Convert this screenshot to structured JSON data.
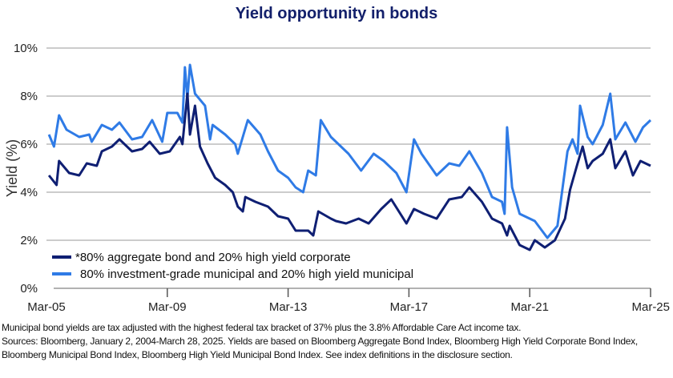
{
  "title": "Yield opportunity in bonds",
  "footnote": {
    "line1": "Municipal bond yields are tax adjusted with the highest federal tax bracket of 37% plus the 3.8% Affordable Care Act income tax.",
    "line2": "Sources: Bloomberg, January 2, 2004-March 28, 2025. Yields are based on Bloomberg Aggregate Bond Index, Bloomberg High Yield Corporate Bond Index, Bloomberg Municipal Bond Index, Bloomberg High Yield Municipal Bond Index. See index definitions in the disclosure section."
  },
  "chart_data": {
    "type": "line",
    "title": "Yield opportunity in bonds",
    "xlabel": "",
    "ylabel": "Yield (%)",
    "ylim": [
      0,
      10
    ],
    "yticks": [
      "0%",
      "2%",
      "4%",
      "6%",
      "8%",
      "10%"
    ],
    "xticks": [
      "Mar-05",
      "Mar-09",
      "Mar-13",
      "Mar-17",
      "Mar-21",
      "Mar-25"
    ],
    "xlim": [
      "2005-03",
      "2025-03"
    ],
    "grid": "horizontal",
    "legend_position": "bottom-left",
    "series": [
      {
        "name": "*80% aggregate bond and 20% high yield corporate",
        "color": "#0f1f73",
        "points": [
          [
            "2005-04",
            4.7
          ],
          [
            "2005-07",
            4.3
          ],
          [
            "2005-08",
            5.3
          ],
          [
            "2005-12",
            4.8
          ],
          [
            "2006-04",
            4.7
          ],
          [
            "2006-07",
            5.2
          ],
          [
            "2006-11",
            5.1
          ],
          [
            "2007-01",
            5.7
          ],
          [
            "2007-05",
            5.9
          ],
          [
            "2007-08",
            6.2
          ],
          [
            "2008-01",
            5.7
          ],
          [
            "2008-05",
            5.8
          ],
          [
            "2008-08",
            6.1
          ],
          [
            "2008-12",
            5.6
          ],
          [
            "2009-04",
            5.7
          ],
          [
            "2009-08",
            6.3
          ],
          [
            "2009-09",
            6.0
          ],
          [
            "2009-11",
            8.1
          ],
          [
            "2009-12",
            6.4
          ],
          [
            "2010-02",
            7.6
          ],
          [
            "2010-04",
            5.9
          ],
          [
            "2010-07",
            5.2
          ],
          [
            "2010-10",
            4.6
          ],
          [
            "2011-02",
            4.3
          ],
          [
            "2011-05",
            4.0
          ],
          [
            "2011-07",
            3.4
          ],
          [
            "2011-09",
            3.2
          ],
          [
            "2011-10",
            3.8
          ],
          [
            "2012-02",
            3.6
          ],
          [
            "2012-07",
            3.4
          ],
          [
            "2012-11",
            3.0
          ],
          [
            "2013-03",
            2.9
          ],
          [
            "2013-06",
            2.4
          ],
          [
            "2013-11",
            2.4
          ],
          [
            "2014-01",
            2.2
          ],
          [
            "2014-03",
            3.2
          ],
          [
            "2014-08",
            2.9
          ],
          [
            "2014-10",
            2.8
          ],
          [
            "2015-02",
            2.7
          ],
          [
            "2015-07",
            2.9
          ],
          [
            "2015-11",
            2.7
          ],
          [
            "2016-04",
            3.3
          ],
          [
            "2016-08",
            3.7
          ],
          [
            "2017-02",
            2.7
          ],
          [
            "2017-05",
            3.3
          ],
          [
            "2017-09",
            3.1
          ],
          [
            "2018-02",
            2.9
          ],
          [
            "2018-07",
            3.7
          ],
          [
            "2018-12",
            3.8
          ],
          [
            "2019-03",
            4.2
          ],
          [
            "2019-08",
            3.6
          ],
          [
            "2019-12",
            2.9
          ],
          [
            "2020-04",
            2.7
          ],
          [
            "2020-06",
            2.2
          ],
          [
            "2020-07",
            2.6
          ],
          [
            "2020-11",
            1.8
          ],
          [
            "2021-03",
            1.6
          ],
          [
            "2021-05",
            2.0
          ],
          [
            "2021-09",
            1.7
          ],
          [
            "2022-01",
            2.0
          ],
          [
            "2022-05",
            2.9
          ],
          [
            "2022-07",
            4.1
          ],
          [
            "2022-10",
            5.2
          ],
          [
            "2022-12",
            5.9
          ],
          [
            "2023-02",
            5.0
          ],
          [
            "2023-04",
            5.3
          ],
          [
            "2023-08",
            5.6
          ],
          [
            "2023-11",
            6.2
          ],
          [
            "2024-01",
            5.0
          ],
          [
            "2024-05",
            5.7
          ],
          [
            "2024-08",
            4.7
          ],
          [
            "2024-11",
            5.3
          ],
          [
            "2025-03",
            5.1
          ]
        ]
      },
      {
        "name": "80% investment-grade municipal and 20% high yield municipal",
        "color": "#2f7be6",
        "points": [
          [
            "2005-04",
            6.4
          ],
          [
            "2005-06",
            5.9
          ],
          [
            "2005-08",
            7.2
          ],
          [
            "2005-11",
            6.6
          ],
          [
            "2006-04",
            6.3
          ],
          [
            "2006-08",
            6.4
          ],
          [
            "2006-09",
            6.1
          ],
          [
            "2007-01",
            6.8
          ],
          [
            "2007-05",
            6.6
          ],
          [
            "2007-08",
            6.9
          ],
          [
            "2008-01",
            6.2
          ],
          [
            "2008-05",
            6.3
          ],
          [
            "2008-09",
            7.0
          ],
          [
            "2009-01",
            6.1
          ],
          [
            "2009-03",
            7.3
          ],
          [
            "2009-07",
            7.3
          ],
          [
            "2009-09",
            6.9
          ],
          [
            "2009-10",
            9.2
          ],
          [
            "2009-11",
            7.9
          ],
          [
            "2009-12",
            9.3
          ],
          [
            "2010-02",
            8.1
          ],
          [
            "2010-06",
            7.6
          ],
          [
            "2010-08",
            6.2
          ],
          [
            "2010-09",
            6.8
          ],
          [
            "2011-02",
            6.4
          ],
          [
            "2011-06",
            6.0
          ],
          [
            "2011-07",
            5.6
          ],
          [
            "2011-11",
            7.0
          ],
          [
            "2012-04",
            6.4
          ],
          [
            "2012-07",
            5.7
          ],
          [
            "2012-11",
            4.9
          ],
          [
            "2013-03",
            4.6
          ],
          [
            "2013-06",
            4.2
          ],
          [
            "2013-09",
            4.0
          ],
          [
            "2013-11",
            4.9
          ],
          [
            "2014-02",
            4.7
          ],
          [
            "2014-04",
            7.0
          ],
          [
            "2014-08",
            6.3
          ],
          [
            "2014-10",
            6.1
          ],
          [
            "2015-03",
            5.6
          ],
          [
            "2015-08",
            4.9
          ],
          [
            "2016-01",
            5.6
          ],
          [
            "2016-05",
            5.3
          ],
          [
            "2016-10",
            4.8
          ],
          [
            "2017-02",
            4.0
          ],
          [
            "2017-05",
            6.2
          ],
          [
            "2017-08",
            5.6
          ],
          [
            "2018-02",
            4.7
          ],
          [
            "2018-07",
            5.2
          ],
          [
            "2018-11",
            5.1
          ],
          [
            "2019-03",
            5.7
          ],
          [
            "2019-08",
            4.8
          ],
          [
            "2019-12",
            3.8
          ],
          [
            "2020-04",
            3.6
          ],
          [
            "2020-05",
            3.1
          ],
          [
            "2020-06",
            6.7
          ],
          [
            "2020-08",
            4.2
          ],
          [
            "2020-11",
            3.1
          ],
          [
            "2021-05",
            2.8
          ],
          [
            "2021-10",
            2.1
          ],
          [
            "2022-02",
            2.6
          ],
          [
            "2022-06",
            5.7
          ],
          [
            "2022-08",
            6.2
          ],
          [
            "2022-10",
            5.6
          ],
          [
            "2022-11",
            7.6
          ],
          [
            "2023-02",
            6.3
          ],
          [
            "2023-04",
            6.0
          ],
          [
            "2023-08",
            6.8
          ],
          [
            "2023-11",
            8.1
          ],
          [
            "2024-01",
            6.2
          ],
          [
            "2024-05",
            6.9
          ],
          [
            "2024-09",
            6.1
          ],
          [
            "2024-12",
            6.7
          ],
          [
            "2025-03",
            7.0
          ]
        ]
      }
    ]
  }
}
